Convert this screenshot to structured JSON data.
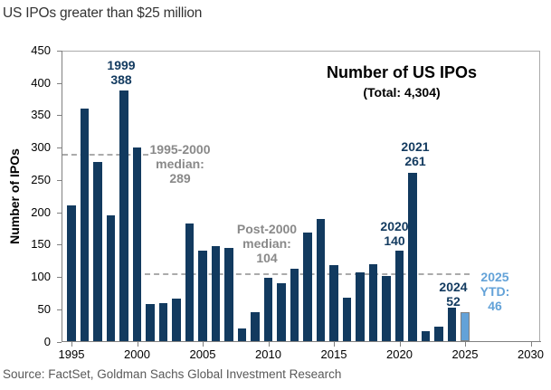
{
  "page": {
    "title": "US IPOs greater than $25 million",
    "source": "Source: FactSet, Goldman Sachs Global Investment Research"
  },
  "chart_data": {
    "type": "bar",
    "title": "Number of US IPOs",
    "subtitle": "(Total: 4,304)",
    "total": "4,304",
    "ylabel": "Number of IPOs",
    "xlabel": "",
    "ylim": [
      0,
      450
    ],
    "ytick_step": 50,
    "yticks": [
      0,
      50,
      100,
      150,
      200,
      250,
      300,
      350,
      400,
      450
    ],
    "xticks": [
      1995,
      2000,
      2005,
      2010,
      2015,
      2020,
      2025,
      2030
    ],
    "grid": false,
    "legend_position": "none",
    "categories": [
      1995,
      1996,
      1997,
      1998,
      1999,
      2000,
      2001,
      2002,
      2003,
      2004,
      2005,
      2006,
      2007,
      2008,
      2009,
      2010,
      2011,
      2012,
      2013,
      2014,
      2015,
      2016,
      2017,
      2018,
      2019,
      2020,
      2021,
      2022,
      2023,
      2024,
      2025
    ],
    "values": [
      210,
      360,
      278,
      195,
      388,
      300,
      58,
      60,
      66,
      183,
      140,
      147,
      145,
      20,
      45,
      98,
      90,
      112,
      168,
      190,
      118,
      68,
      107,
      119,
      101,
      140,
      261,
      16,
      23,
      52,
      46
    ],
    "highlight_year": 2025,
    "colors": {
      "bar": "#123a5f",
      "highlight_bar": "#63a2d8",
      "highlight_border": "#7f7f7f",
      "label": "#123a5f",
      "highlight_label": "#63a2d8",
      "median_text": "#898989",
      "dash": "#ababab"
    },
    "median_lines": [
      {
        "id": "median-1995-2000",
        "value": 289,
        "lines": [
          "1995-2000",
          "median:",
          "289"
        ]
      },
      {
        "id": "median-post-2000",
        "value": 104,
        "lines": [
          "Post-2000",
          "median:",
          "104"
        ]
      }
    ],
    "annotations": [
      {
        "id": "label-1999",
        "lines": [
          "1999",
          "388"
        ],
        "color_key": "label"
      },
      {
        "id": "label-2020",
        "lines": [
          "2020",
          "140"
        ],
        "color_key": "label"
      },
      {
        "id": "label-2021",
        "lines": [
          "2021",
          "261"
        ],
        "color_key": "label"
      },
      {
        "id": "label-2024",
        "lines": [
          "2024",
          "52"
        ],
        "color_key": "label"
      },
      {
        "id": "label-2025",
        "lines": [
          "2025",
          "YTD:",
          "46"
        ],
        "color_key": "highlight_label"
      }
    ]
  }
}
